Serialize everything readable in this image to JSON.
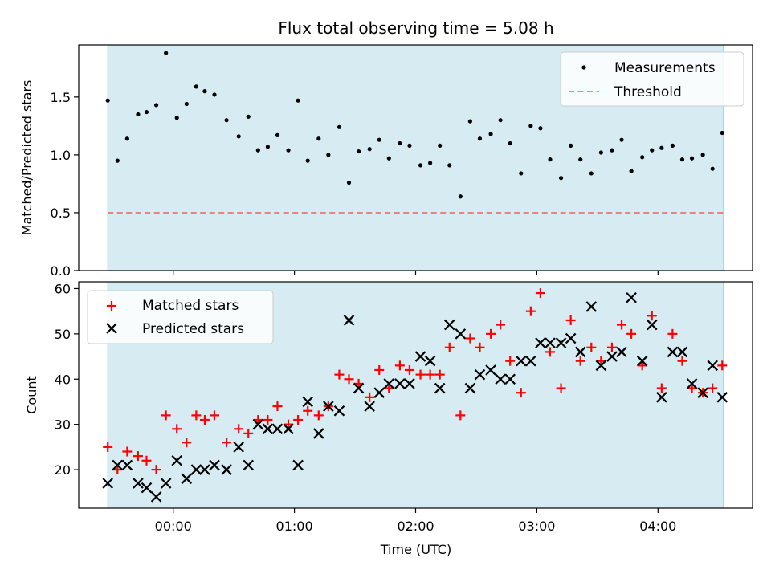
{
  "chart_data": {
    "title": "Flux total observing time = 5.08 h",
    "xlabel": "Time (UTC)",
    "x_tick_labels": [
      "00:00",
      "01:00",
      "02:00",
      "03:00",
      "04:00"
    ],
    "x_tick_hours": [
      0,
      1,
      2,
      3,
      4
    ],
    "xlim_hours": [
      -0.78,
      4.78
    ],
    "shaded_span_hours": [
      -0.54,
      4.54
    ],
    "top": {
      "type": "scatter",
      "ylabel": "Matched/Predicted stars",
      "ylim": [
        0,
        1.95
      ],
      "yticks": [
        0.0,
        0.5,
        1.0,
        1.5
      ],
      "ytick_labels": [
        "0.0",
        "0.5",
        "1.0",
        "1.5"
      ],
      "legend_position": "top-right",
      "series": [
        {
          "name": "Measurements",
          "style": "dot",
          "color": "#000000",
          "x": [
            -0.54,
            -0.46,
            -0.38,
            -0.29,
            -0.22,
            -0.14,
            -0.06,
            0.03,
            0.11,
            0.19,
            0.26,
            0.34,
            0.44,
            0.54,
            0.62,
            0.7,
            0.78,
            0.86,
            0.95,
            1.03,
            1.11,
            1.2,
            1.28,
            1.37,
            1.45,
            1.53,
            1.62,
            1.7,
            1.78,
            1.87,
            1.95,
            2.04,
            2.12,
            2.2,
            2.28,
            2.37,
            2.45,
            2.53,
            2.62,
            2.7,
            2.78,
            2.87,
            2.95,
            3.03,
            3.11,
            3.2,
            3.28,
            3.36,
            3.45,
            3.53,
            3.62,
            3.7,
            3.78,
            3.87,
            3.95,
            4.03,
            4.12,
            4.2,
            4.28,
            4.37,
            4.45,
            4.53
          ],
          "y": [
            1.47,
            0.95,
            1.14,
            1.35,
            1.37,
            1.43,
            1.88,
            1.32,
            1.44,
            1.59,
            1.55,
            1.52,
            1.3,
            1.16,
            1.33,
            1.04,
            1.07,
            1.17,
            1.04,
            1.47,
            0.95,
            1.14,
            1.0,
            1.24,
            0.76,
            1.03,
            1.05,
            1.13,
            0.97,
            1.1,
            1.08,
            0.91,
            0.93,
            1.08,
            0.91,
            0.64,
            1.29,
            1.14,
            1.18,
            1.3,
            1.1,
            0.84,
            1.25,
            1.23,
            0.96,
            0.8,
            1.08,
            0.96,
            0.84,
            1.02,
            1.04,
            1.13,
            0.86,
            0.98,
            1.04,
            1.06,
            1.08,
            0.96,
            0.97,
            1.0,
            0.88,
            1.19
          ]
        },
        {
          "name": "Threshold",
          "style": "dashed-line",
          "color": "#f08080",
          "value": 0.5
        }
      ]
    },
    "bottom": {
      "type": "scatter",
      "ylabel": "Count",
      "ylim": [
        11.5,
        61.5
      ],
      "yticks": [
        20,
        30,
        40,
        50,
        60
      ],
      "ytick_labels": [
        "20",
        "30",
        "40",
        "50",
        "60"
      ],
      "legend_position": "top-left",
      "series": [
        {
          "name": "Matched stars",
          "marker": "plus",
          "color": "#ff0000",
          "x": [
            -0.54,
            -0.46,
            -0.38,
            -0.29,
            -0.22,
            -0.14,
            -0.06,
            0.03,
            0.11,
            0.19,
            0.26,
            0.34,
            0.44,
            0.54,
            0.62,
            0.7,
            0.78,
            0.86,
            0.95,
            1.03,
            1.11,
            1.2,
            1.28,
            1.37,
            1.45,
            1.53,
            1.62,
            1.7,
            1.78,
            1.87,
            1.95,
            2.04,
            2.12,
            2.2,
            2.28,
            2.37,
            2.45,
            2.53,
            2.62,
            2.7,
            2.78,
            2.87,
            2.95,
            3.03,
            3.11,
            3.2,
            3.28,
            3.36,
            3.45,
            3.53,
            3.62,
            3.7,
            3.78,
            3.87,
            3.95,
            4.03,
            4.12,
            4.2,
            4.28,
            4.37,
            4.45,
            4.53
          ],
          "y": [
            25,
            20,
            24,
            23,
            22,
            20,
            32,
            29,
            26,
            32,
            31,
            32,
            26,
            29,
            28,
            31,
            31,
            34,
            30,
            31,
            33,
            32,
            34,
            41,
            40,
            39,
            36,
            42,
            38,
            43,
            42,
            41,
            41,
            41,
            47,
            32,
            49,
            47,
            50,
            52,
            44,
            37,
            55,
            59,
            46,
            38,
            53,
            44,
            47,
            44,
            47,
            52,
            50,
            43,
            54,
            38,
            50,
            44,
            38,
            37,
            38,
            43
          ]
        },
        {
          "name": "Predicted stars",
          "marker": "x",
          "color": "#000000",
          "x": [
            -0.54,
            -0.46,
            -0.38,
            -0.29,
            -0.22,
            -0.14,
            -0.06,
            0.03,
            0.11,
            0.19,
            0.26,
            0.34,
            0.44,
            0.54,
            0.62,
            0.7,
            0.78,
            0.86,
            0.95,
            1.03,
            1.11,
            1.2,
            1.28,
            1.37,
            1.45,
            1.53,
            1.62,
            1.7,
            1.78,
            1.87,
            1.95,
            2.04,
            2.12,
            2.2,
            2.28,
            2.37,
            2.45,
            2.53,
            2.62,
            2.7,
            2.78,
            2.87,
            2.95,
            3.03,
            3.11,
            3.2,
            3.28,
            3.36,
            3.45,
            3.53,
            3.62,
            3.7,
            3.78,
            3.87,
            3.95,
            4.03,
            4.12,
            4.2,
            4.28,
            4.37,
            4.45,
            4.53
          ],
          "y": [
            17,
            21,
            21,
            17,
            16,
            14,
            17,
            22,
            18,
            20,
            20,
            21,
            20,
            25,
            21,
            30,
            29,
            29,
            29,
            21,
            35,
            28,
            34,
            33,
            53,
            38,
            34,
            37,
            39,
            39,
            39,
            45,
            44,
            38,
            52,
            50,
            38,
            41,
            42,
            40,
            40,
            44,
            44,
            48,
            48,
            48,
            49,
            46,
            56,
            43,
            45,
            46,
            58,
            44,
            52,
            36,
            46,
            46,
            39,
            37,
            43,
            36
          ]
        }
      ]
    },
    "colors": {
      "span_fill": "#add8e6",
      "span_edge": "#9ccfd8"
    }
  }
}
